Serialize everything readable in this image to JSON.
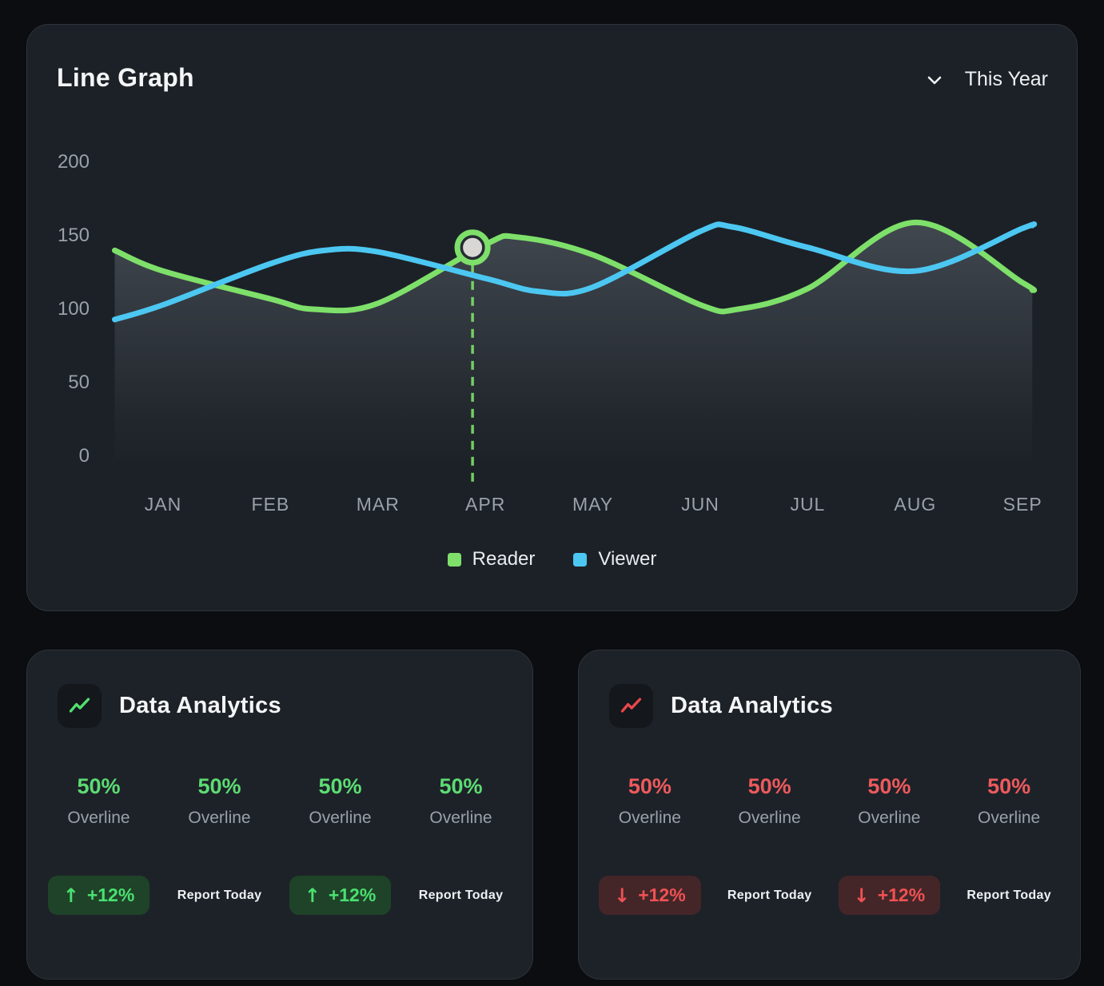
{
  "line_chart_card": {
    "title": "Line Graph",
    "period_selector": {
      "label": "This Year",
      "icon": "chevron-down"
    }
  },
  "chart_data": {
    "type": "line",
    "title": "Line Graph",
    "x_labels": [
      "JAN",
      "FEB",
      "MAR",
      "APR",
      "MAY",
      "JUN",
      "JUL",
      "AUG",
      "SEP"
    ],
    "y_ticks": [
      200,
      150,
      100,
      50,
      0
    ],
    "ylim": [
      0,
      200
    ],
    "grid": false,
    "legend_position": "bottom-center",
    "series": [
      {
        "name": "Reader",
        "color": "#7ee06a",
        "points": [
          [
            -0.45,
            140
          ],
          [
            0,
            126
          ],
          [
            1,
            107
          ],
          [
            1.4,
            100
          ],
          [
            2,
            104
          ],
          [
            3,
            144
          ],
          [
            3.3,
            149
          ],
          [
            4,
            137
          ],
          [
            5,
            103
          ],
          [
            5.35,
            100
          ],
          [
            6,
            114
          ],
          [
            7,
            159
          ],
          [
            8,
            118
          ],
          [
            8.09,
            113
          ]
        ]
      },
      {
        "name": "Viewer",
        "color": "#4cc7f2",
        "points": [
          [
            -0.45,
            93
          ],
          [
            0,
            103
          ],
          [
            1,
            131
          ],
          [
            1.5,
            140
          ],
          [
            2,
            139
          ],
          [
            3,
            121
          ],
          [
            3.5,
            112
          ],
          [
            4,
            115
          ],
          [
            5,
            153
          ],
          [
            5.3,
            156
          ],
          [
            6,
            142
          ],
          [
            7,
            126
          ],
          [
            8,
            155
          ],
          [
            8.09,
            157
          ]
        ]
      }
    ],
    "highlight_marker": {
      "series": "Reader",
      "x": 2.88,
      "value": 142,
      "month": "APR"
    },
    "area_fill_series": "Reader",
    "area_fill_color": "#aab4c0"
  },
  "analytics_cards": [
    {
      "title": "Data Analytics",
      "accent": "#5cdc73",
      "trend": "up",
      "icon": "trend-line-up",
      "stats": [
        {
          "value": "50%",
          "label": "Overline"
        },
        {
          "value": "50%",
          "label": "Overline"
        },
        {
          "value": "50%",
          "label": "Overline"
        },
        {
          "value": "50%",
          "label": "Overline"
        }
      ],
      "actions": [
        {
          "kind": "badge",
          "arrow": "↑",
          "text": "+12%"
        },
        {
          "kind": "report",
          "text": "Report Today"
        },
        {
          "kind": "badge",
          "arrow": "↑",
          "text": "+12%"
        },
        {
          "kind": "report",
          "text": "Report Today"
        }
      ]
    },
    {
      "title": "Data Analytics",
      "accent": "#ee5a5d",
      "trend": "down",
      "icon": "trend-line-up",
      "stats": [
        {
          "value": "50%",
          "label": "Overline"
        },
        {
          "value": "50%",
          "label": "Overline"
        },
        {
          "value": "50%",
          "label": "Overline"
        },
        {
          "value": "50%",
          "label": "Overline"
        }
      ],
      "actions": [
        {
          "kind": "badge",
          "arrow": "↓",
          "text": "+12%"
        },
        {
          "kind": "report",
          "text": "Report Today"
        },
        {
          "kind": "badge",
          "arrow": "↓",
          "text": "+12%"
        },
        {
          "kind": "report",
          "text": "Report Today"
        }
      ]
    }
  ]
}
